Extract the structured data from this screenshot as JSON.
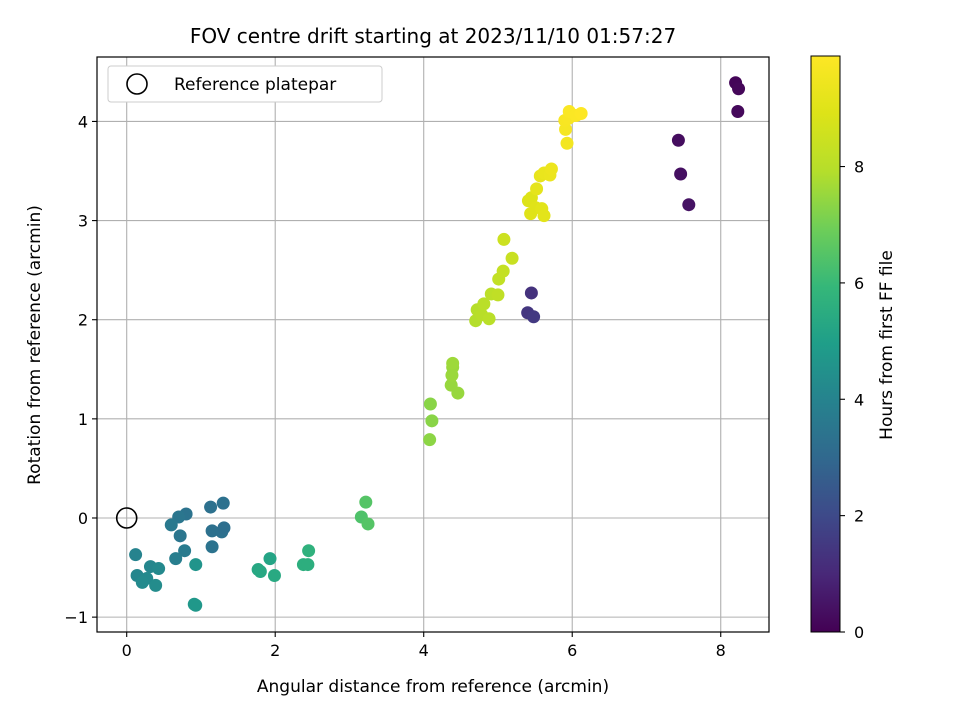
{
  "chart_data": {
    "type": "scatter",
    "title": "FOV centre drift starting at 2023/11/10 01:57:27",
    "xlabel": "Angular distance from reference (arcmin)",
    "ylabel": "Rotation from reference (arcmin)",
    "xlim": [
      -0.4,
      8.65
    ],
    "ylim": [
      -1.15,
      4.65
    ],
    "xticks": [
      0,
      2,
      4,
      6,
      8
    ],
    "yticks": [
      -1,
      0,
      1,
      2,
      3,
      4
    ],
    "grid": true,
    "legend": {
      "placement": "upper-left",
      "entries": [
        "Reference platepar"
      ]
    },
    "reference_point": {
      "x": 0,
      "y": 0,
      "label": "Reference platepar"
    },
    "colorbar": {
      "label": "Hours from first FF file",
      "colormap": "viridis",
      "range": [
        0,
        9.9
      ],
      "ticks": [
        0,
        2,
        4,
        6,
        8
      ]
    },
    "points": [
      {
        "x": 8.2,
        "y": 4.39,
        "h": 0.1
      },
      {
        "x": 8.24,
        "y": 4.33,
        "h": 0.15
      },
      {
        "x": 8.23,
        "y": 4.1,
        "h": 0.2
      },
      {
        "x": 7.43,
        "y": 3.81,
        "h": 0.3
      },
      {
        "x": 7.46,
        "y": 3.47,
        "h": 0.35
      },
      {
        "x": 7.57,
        "y": 3.16,
        "h": 0.45
      },
      {
        "x": 5.45,
        "y": 2.27,
        "h": 1.3
      },
      {
        "x": 5.4,
        "y": 2.07,
        "h": 1.4
      },
      {
        "x": 5.48,
        "y": 2.03,
        "h": 1.5
      },
      {
        "x": 1.3,
        "y": 0.15,
        "h": 3.3
      },
      {
        "x": 1.13,
        "y": 0.11,
        "h": 3.3
      },
      {
        "x": 0.8,
        "y": 0.04,
        "h": 3.4
      },
      {
        "x": 0.7,
        "y": 0.01,
        "h": 3.5
      },
      {
        "x": 0.6,
        "y": -0.07,
        "h": 3.6
      },
      {
        "x": 0.72,
        "y": -0.18,
        "h": 3.5
      },
      {
        "x": 1.15,
        "y": -0.13,
        "h": 3.3
      },
      {
        "x": 1.28,
        "y": -0.14,
        "h": 3.3
      },
      {
        "x": 1.31,
        "y": -0.1,
        "h": 3.25
      },
      {
        "x": 1.15,
        "y": -0.29,
        "h": 3.4
      },
      {
        "x": 0.78,
        "y": -0.33,
        "h": 3.7
      },
      {
        "x": 0.66,
        "y": -0.41,
        "h": 3.8
      },
      {
        "x": 0.12,
        "y": -0.37,
        "h": 4.0
      },
      {
        "x": 0.32,
        "y": -0.49,
        "h": 4.1
      },
      {
        "x": 0.43,
        "y": -0.51,
        "h": 4.2
      },
      {
        "x": 0.14,
        "y": -0.58,
        "h": 4.1
      },
      {
        "x": 0.27,
        "y": -0.61,
        "h": 4.2
      },
      {
        "x": 0.21,
        "y": -0.65,
        "h": 4.25
      },
      {
        "x": 0.39,
        "y": -0.68,
        "h": 4.3
      },
      {
        "x": 0.93,
        "y": -0.47,
        "h": 4.6
      },
      {
        "x": 0.93,
        "y": -0.88,
        "h": 4.7
      },
      {
        "x": 0.91,
        "y": -0.87,
        "h": 4.75
      },
      {
        "x": 1.93,
        "y": -0.41,
        "h": 5.2
      },
      {
        "x": 1.77,
        "y": -0.52,
        "h": 5.3
      },
      {
        "x": 1.8,
        "y": -0.54,
        "h": 5.35
      },
      {
        "x": 1.99,
        "y": -0.58,
        "h": 5.4
      },
      {
        "x": 2.38,
        "y": -0.47,
        "h": 5.6
      },
      {
        "x": 2.44,
        "y": -0.47,
        "h": 5.6
      },
      {
        "x": 2.45,
        "y": -0.33,
        "h": 5.7
      },
      {
        "x": 3.16,
        "y": 0.01,
        "h": 6.4
      },
      {
        "x": 3.22,
        "y": 0.16,
        "h": 6.5
      },
      {
        "x": 3.25,
        "y": -0.06,
        "h": 6.5
      },
      {
        "x": 4.09,
        "y": 1.15,
        "h": 7.3
      },
      {
        "x": 4.11,
        "y": 0.98,
        "h": 7.3
      },
      {
        "x": 4.08,
        "y": 0.79,
        "h": 7.35
      },
      {
        "x": 4.46,
        "y": 1.26,
        "h": 7.5
      },
      {
        "x": 4.37,
        "y": 1.34,
        "h": 7.5
      },
      {
        "x": 4.38,
        "y": 1.44,
        "h": 7.55
      },
      {
        "x": 4.39,
        "y": 1.52,
        "h": 7.55
      },
      {
        "x": 4.39,
        "y": 1.56,
        "h": 7.6
      },
      {
        "x": 4.7,
        "y": 1.99,
        "h": 7.9
      },
      {
        "x": 4.72,
        "y": 2.1,
        "h": 7.95
      },
      {
        "x": 4.78,
        "y": 2.05,
        "h": 8.0
      },
      {
        "x": 4.81,
        "y": 2.16,
        "h": 8.05
      },
      {
        "x": 4.88,
        "y": 2.01,
        "h": 8.05
      },
      {
        "x": 4.91,
        "y": 2.26,
        "h": 8.1
      },
      {
        "x": 5.0,
        "y": 2.25,
        "h": 8.2
      },
      {
        "x": 5.01,
        "y": 2.41,
        "h": 8.25
      },
      {
        "x": 5.07,
        "y": 2.49,
        "h": 8.3
      },
      {
        "x": 5.19,
        "y": 2.62,
        "h": 8.4
      },
      {
        "x": 5.08,
        "y": 2.81,
        "h": 8.5
      },
      {
        "x": 5.41,
        "y": 3.2,
        "h": 8.9
      },
      {
        "x": 5.45,
        "y": 3.23,
        "h": 8.95
      },
      {
        "x": 5.44,
        "y": 3.07,
        "h": 9.0
      },
      {
        "x": 5.51,
        "y": 3.13,
        "h": 9.0
      },
      {
        "x": 5.59,
        "y": 3.12,
        "h": 9.05
      },
      {
        "x": 5.62,
        "y": 3.05,
        "h": 9.1
      },
      {
        "x": 5.52,
        "y": 3.32,
        "h": 9.15
      },
      {
        "x": 5.57,
        "y": 3.45,
        "h": 9.25
      },
      {
        "x": 5.62,
        "y": 3.48,
        "h": 9.3
      },
      {
        "x": 5.7,
        "y": 3.46,
        "h": 9.35
      },
      {
        "x": 5.72,
        "y": 3.52,
        "h": 9.4
      },
      {
        "x": 5.93,
        "y": 3.78,
        "h": 9.6
      },
      {
        "x": 5.91,
        "y": 3.92,
        "h": 9.65
      },
      {
        "x": 5.9,
        "y": 4.01,
        "h": 9.7
      },
      {
        "x": 5.95,
        "y": 4.03,
        "h": 9.75
      },
      {
        "x": 5.96,
        "y": 4.1,
        "h": 9.8
      },
      {
        "x": 6.05,
        "y": 4.06,
        "h": 9.85
      },
      {
        "x": 6.12,
        "y": 4.08,
        "h": 9.9
      }
    ]
  }
}
